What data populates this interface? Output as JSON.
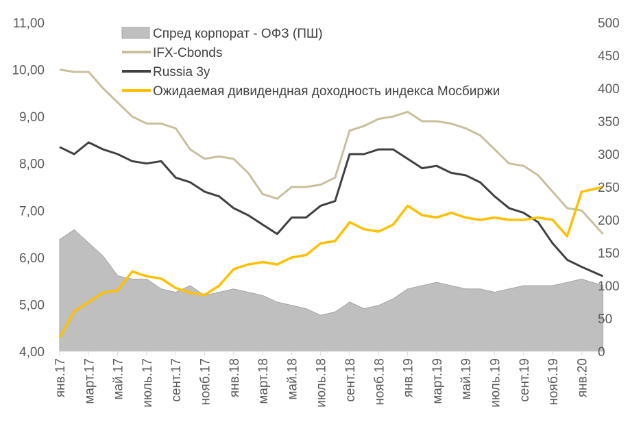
{
  "chart_data": {
    "type": "line",
    "title": "",
    "x": [
      "янв.17",
      "февр.17",
      "март.17",
      "апр.17",
      "май.17",
      "июнь.17",
      "июль.17",
      "авг.17",
      "сент.17",
      "окт.17",
      "нояб.17",
      "дек.17",
      "янв.18",
      "февр.18",
      "март.18",
      "апр.18",
      "май.18",
      "июнь.18",
      "июль.18",
      "авг.18",
      "сент.18",
      "окт.18",
      "нояб.18",
      "дек.18",
      "янв.19",
      "февр.19",
      "март.19",
      "апр.19",
      "май.19",
      "июнь.19",
      "июль.19",
      "авг.19",
      "сент.19",
      "окт.19",
      "нояб.19",
      "дек.19",
      "янв.20",
      "февр.20"
    ],
    "x_tick_labels": [
      "янв.17",
      "март.17",
      "май.17",
      "июль.17",
      "сент.17",
      "нояб.17",
      "янв.18",
      "март.18",
      "май.18",
      "июль.18",
      "сент.18",
      "нояб.18",
      "янв.19",
      "март.19",
      "май.19",
      "июль.19",
      "сент.19",
      "нояб.19",
      "янв.20"
    ],
    "y_left": {
      "range": [
        4,
        11
      ],
      "ticks": [
        "4,00",
        "5,00",
        "6,00",
        "7,00",
        "8,00",
        "9,00",
        "10,00",
        "11,00"
      ]
    },
    "y_right": {
      "range": [
        0,
        500
      ],
      "ticks": [
        "0",
        "50",
        "100",
        "150",
        "200",
        "250",
        "300",
        "350",
        "400",
        "450",
        "500"
      ]
    },
    "legend_position": "top-center",
    "series": [
      {
        "name": "Спред корпорат - ОФЗ (ПШ)",
        "type": "area",
        "axis": "right",
        "color": "#BFBFBF",
        "values": [
          170,
          185,
          165,
          145,
          115,
          110,
          110,
          95,
          90,
          100,
          85,
          90,
          95,
          90,
          85,
          75,
          70,
          65,
          55,
          60,
          75,
          65,
          70,
          80,
          95,
          100,
          105,
          100,
          95,
          95,
          90,
          95,
          100,
          100,
          100,
          105,
          110,
          100
        ]
      },
      {
        "name": "IFX-Cbonds",
        "type": "line",
        "axis": "left",
        "color": "#C9BF9A",
        "values": [
          10.0,
          9.95,
          9.95,
          9.6,
          9.3,
          9.0,
          8.85,
          8.85,
          8.75,
          8.3,
          8.1,
          8.15,
          8.1,
          7.8,
          7.35,
          7.25,
          7.5,
          7.5,
          7.55,
          7.7,
          8.7,
          8.8,
          8.95,
          9.0,
          9.1,
          8.9,
          8.9,
          8.85,
          8.75,
          8.6,
          8.3,
          8.0,
          7.95,
          7.75,
          7.4,
          7.05,
          7.0,
          6.5
        ]
      },
      {
        "name": "Russia 3y",
        "type": "line",
        "axis": "left",
        "color": "#404040",
        "values": [
          8.35,
          8.2,
          8.45,
          8.3,
          8.2,
          8.05,
          8.0,
          8.05,
          7.7,
          7.6,
          7.4,
          7.3,
          7.05,
          6.9,
          6.7,
          6.5,
          6.85,
          6.85,
          7.1,
          7.2,
          8.2,
          8.2,
          8.3,
          8.3,
          8.1,
          7.9,
          7.95,
          7.8,
          7.75,
          7.6,
          7.3,
          7.05,
          6.95,
          6.75,
          6.3,
          5.95,
          5.8,
          5.6
        ]
      },
      {
        "name": "Ожидаемая дивидендная доходность индекса Мосбиржи",
        "type": "line",
        "axis": "left",
        "color": "#FFC000",
        "values": [
          4.3,
          4.85,
          5.05,
          5.25,
          5.3,
          5.7,
          5.6,
          5.55,
          5.35,
          5.25,
          5.2,
          5.4,
          5.75,
          5.85,
          5.9,
          5.85,
          6.0,
          6.05,
          6.3,
          6.35,
          6.75,
          6.6,
          6.55,
          6.7,
          7.1,
          6.9,
          6.85,
          6.95,
          6.85,
          6.8,
          6.85,
          6.8,
          6.8,
          6.85,
          6.8,
          6.45,
          7.4,
          7.5
        ]
      }
    ]
  }
}
